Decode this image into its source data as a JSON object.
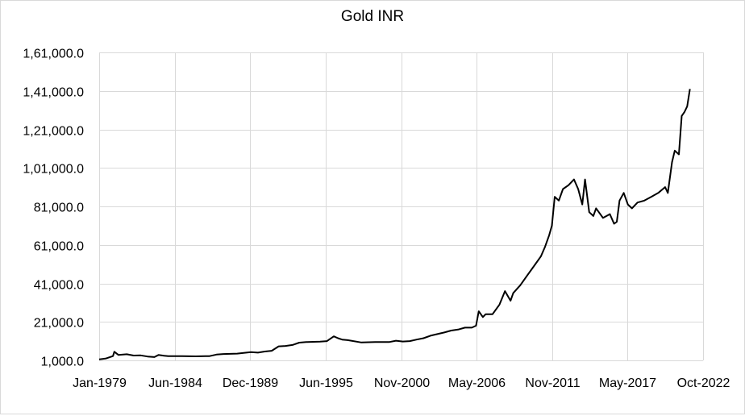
{
  "chart": {
    "title": "Gold INR",
    "line_color": "#000000",
    "grid_color": "#d9d9d9",
    "background": "#ffffff"
  },
  "chart_data": {
    "type": "line",
    "title": "Gold INR",
    "xlabel": "",
    "ylabel": "",
    "x_tick_labels": [
      "Jan-1979",
      "Jun-1984",
      "Dec-1989",
      "Jun-1995",
      "Nov-2000",
      "May-2006",
      "Nov-2011",
      "May-2017",
      "Oct-2022"
    ],
    "y_tick_labels": [
      "1,000.0",
      "21,000.0",
      "41,000.0",
      "61,000.0",
      "81,000.0",
      "1,01,000.0",
      "1,21,000.0",
      "1,41,000.0",
      "1,61,000.0"
    ],
    "y_ticks": [
      1000,
      21000,
      41000,
      61000,
      81000,
      101000,
      121000,
      141000,
      161000
    ],
    "ylim": [
      1000,
      161000
    ],
    "xlim": [
      1979.0,
      2022.75
    ],
    "grid": true,
    "legend": null,
    "series": [
      {
        "name": "Gold INR",
        "x": [
          1979.0,
          1979.5,
          1980.0,
          1980.1,
          1980.4,
          1981.0,
          1981.5,
          1982.0,
          1982.5,
          1983.0,
          1983.3,
          1983.7,
          1984.0,
          1985.0,
          1986.0,
          1987.0,
          1987.5,
          1988.0,
          1989.0,
          1990.0,
          1990.5,
          1991.0,
          1991.5,
          1992.0,
          1992.5,
          1993.0,
          1993.5,
          1994.0,
          1995.0,
          1995.5,
          1996.0,
          1996.3,
          1996.6,
          1997.0,
          1998.0,
          1999.0,
          2000.0,
          2000.5,
          2001.0,
          2001.5,
          2002.0,
          2002.5,
          2003.0,
          2004.0,
          2004.5,
          2005.0,
          2005.5,
          2006.0,
          2006.3,
          2006.5,
          2006.8,
          2007.0,
          2007.5,
          2008.0,
          2008.4,
          2008.8,
          2009.0,
          2009.5,
          2010.0,
          2010.5,
          2011.0,
          2011.3,
          2011.6,
          2011.8,
          2012.0,
          2012.3,
          2012.6,
          2013.0,
          2013.4,
          2013.7,
          2014.0,
          2014.2,
          2014.5,
          2014.8,
          2015.0,
          2015.5,
          2016.0,
          2016.3,
          2016.5,
          2016.7,
          2017.0,
          2017.3,
          2017.6,
          2018.0,
          2018.5,
          2019.0,
          2019.5,
          2020.0,
          2020.2,
          2020.5,
          2020.7,
          2021.0,
          2021.2,
          2021.4,
          2021.6,
          2021.8
        ],
        "values": [
          1500,
          2000,
          3200,
          5500,
          3800,
          4200,
          3500,
          3600,
          3000,
          2700,
          3800,
          3400,
          3200,
          3200,
          3100,
          3200,
          4000,
          4300,
          4500,
          5300,
          5000,
          5600,
          6000,
          8300,
          8500,
          9000,
          10200,
          10500,
          10700,
          11000,
          13500,
          12500,
          11800,
          11500,
          10300,
          10500,
          10500,
          11200,
          10800,
          11000,
          11800,
          12500,
          13800,
          15500,
          16500,
          17000,
          18000,
          18000,
          19000,
          26500,
          23500,
          25000,
          25000,
          30000,
          37000,
          32000,
          36000,
          40000,
          45000,
          50000,
          55000,
          60000,
          66000,
          71000,
          86000,
          84000,
          90000,
          92000,
          95000,
          90000,
          82000,
          95000,
          78000,
          76000,
          80000,
          75000,
          77000,
          72000,
          73000,
          84000,
          88000,
          82000,
          80000,
          83000,
          84000,
          86000,
          88000,
          91000,
          88000,
          104000,
          110000,
          108000,
          128000,
          130000,
          133000,
          142000
        ]
      }
    ]
  }
}
